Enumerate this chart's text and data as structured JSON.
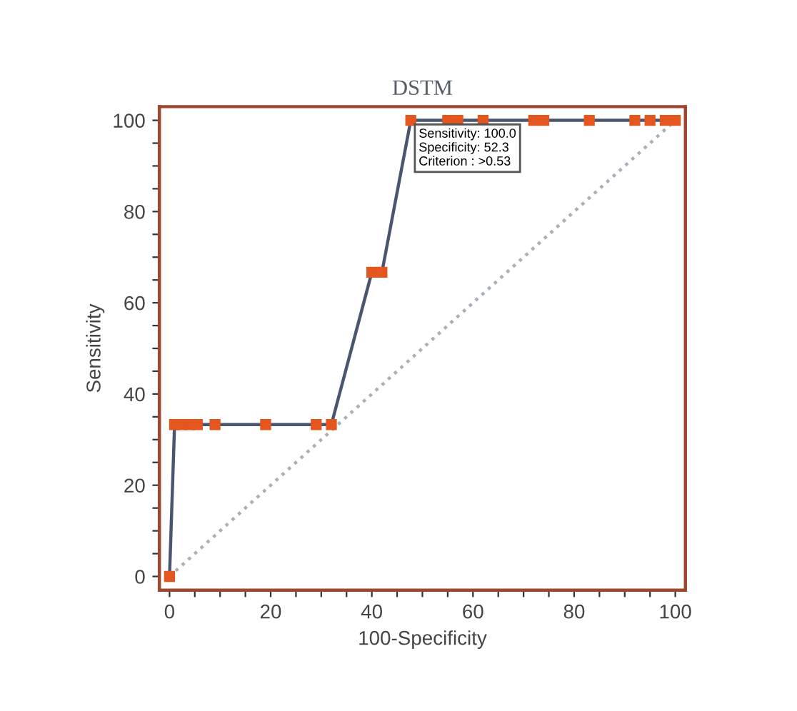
{
  "chart_data": {
    "type": "line",
    "title": "DSTM",
    "xlabel": "100-Specificity",
    "ylabel": "Sensitivity",
    "xlim": [
      -2,
      102
    ],
    "ylim": [
      -3,
      103
    ],
    "xticks": [
      0,
      {
        "value": 5,
        "label": null
      },
      {
        "value": 10,
        "label": null
      },
      {
        "value": 15,
        "label": null
      },
      20,
      {
        "value": 25,
        "label": null
      },
      {
        "value": 30,
        "label": null
      },
      {
        "value": 35,
        "label": null
      },
      40,
      {
        "value": 45,
        "label": null
      },
      {
        "value": 50,
        "label": null
      },
      {
        "value": 55,
        "label": null
      },
      60,
      {
        "value": 65,
        "label": null
      },
      {
        "value": 70,
        "label": null
      },
      {
        "value": 75,
        "label": null
      },
      80,
      {
        "value": 85,
        "label": null
      },
      {
        "value": 90,
        "label": null
      },
      {
        "value": 95,
        "label": null
      },
      100
    ],
    "yticks": [
      0,
      {
        "value": 5,
        "label": null
      },
      {
        "value": 10,
        "label": null
      },
      {
        "value": 15,
        "label": null
      },
      20,
      {
        "value": 25,
        "label": null
      },
      {
        "value": 30,
        "label": null
      },
      {
        "value": 35,
        "label": null
      },
      40,
      {
        "value": 45,
        "label": null
      },
      {
        "value": 50,
        "label": null
      },
      {
        "value": 55,
        "label": null
      },
      60,
      {
        "value": 65,
        "label": null
      },
      {
        "value": 70,
        "label": null
      },
      {
        "value": 75,
        "label": null
      },
      80,
      {
        "value": 85,
        "label": null
      },
      {
        "value": 90,
        "label": null
      },
      {
        "value": 95,
        "label": null
      },
      100
    ],
    "grid": false,
    "legend": false,
    "series": [
      {
        "color": "#4a5670",
        "marker": "square",
        "line_style": "solid",
        "x": [
          0,
          1,
          2.5,
          4,
          5.5,
          9,
          19,
          29,
          32,
          40,
          42,
          47.7,
          55,
          57,
          62,
          72,
          74,
          83,
          92,
          95,
          98,
          100
        ],
        "values": [
          0,
          33.3,
          33.3,
          33.3,
          33.3,
          33.3,
          33.3,
          33.3,
          33.3,
          66.7,
          66.7,
          100,
          100,
          100,
          100,
          100,
          100,
          100,
          100,
          100,
          100,
          100
        ]
      },
      {
        "color": "#a8b0b8",
        "marker": "none",
        "line_style": "dotted",
        "x": [
          0,
          100
        ],
        "values": [
          0,
          100
        ]
      }
    ],
    "annotations": [
      {
        "text": "Sensitivity: 100.0\nSpecificity: 52.3\nCriterion : >0.53",
        "x": 47.7,
        "y": 100
      }
    ]
  }
}
